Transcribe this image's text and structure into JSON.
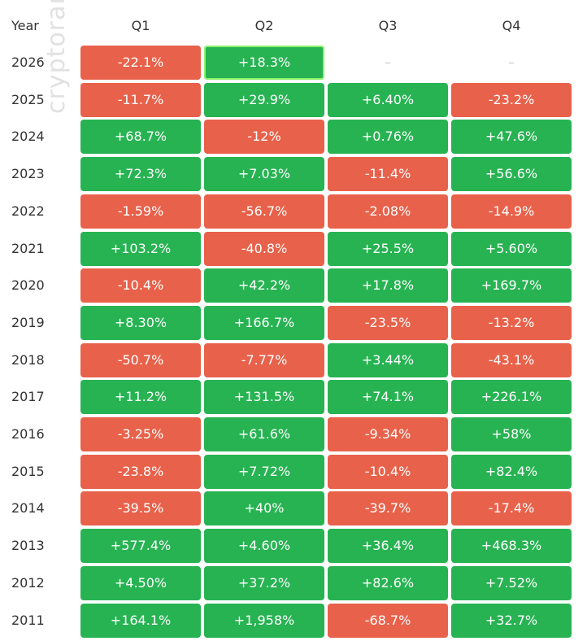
{
  "watermark_text": "cryptorank",
  "colors": {
    "positive": "#27b352",
    "negative": "#e8614a",
    "highlight_border": "#8ef26a",
    "empty_text": "#c8c8c8"
  },
  "chart_data": {
    "type": "heatmap",
    "row_header_label": "Year",
    "columns": [
      "Q1",
      "Q2",
      "Q3",
      "Q4"
    ],
    "rows": [
      {
        "year": "2026",
        "values": [
          "-22.1%",
          "+18.3%",
          "–",
          "–"
        ]
      },
      {
        "year": "2025",
        "values": [
          "-11.7%",
          "+29.9%",
          "+6.40%",
          "-23.2%"
        ]
      },
      {
        "year": "2024",
        "values": [
          "+68.7%",
          "-12%",
          "+0.76%",
          "+47.6%"
        ]
      },
      {
        "year": "2023",
        "values": [
          "+72.3%",
          "+7.03%",
          "-11.4%",
          "+56.6%"
        ]
      },
      {
        "year": "2022",
        "values": [
          "-1.59%",
          "-56.7%",
          "-2.08%",
          "-14.9%"
        ]
      },
      {
        "year": "2021",
        "values": [
          "+103.2%",
          "-40.8%",
          "+25.5%",
          "+5.60%"
        ]
      },
      {
        "year": "2020",
        "values": [
          "-10.4%",
          "+42.2%",
          "+17.8%",
          "+169.7%"
        ]
      },
      {
        "year": "2019",
        "values": [
          "+8.30%",
          "+166.7%",
          "-23.5%",
          "-13.2%"
        ]
      },
      {
        "year": "2018",
        "values": [
          "-50.7%",
          "-7.77%",
          "+3.44%",
          "-43.1%"
        ]
      },
      {
        "year": "2017",
        "values": [
          "+11.2%",
          "+131.5%",
          "+74.1%",
          "+226.1%"
        ]
      },
      {
        "year": "2016",
        "values": [
          "-3.25%",
          "+61.6%",
          "-9.34%",
          "+58%"
        ]
      },
      {
        "year": "2015",
        "values": [
          "-23.8%",
          "+7.72%",
          "-10.4%",
          "+82.4%"
        ]
      },
      {
        "year": "2014",
        "values": [
          "-39.5%",
          "+40%",
          "-39.7%",
          "-17.4%"
        ]
      },
      {
        "year": "2013",
        "values": [
          "+577.4%",
          "+4.60%",
          "+36.4%",
          "+468.3%"
        ]
      },
      {
        "year": "2012",
        "values": [
          "+4.50%",
          "+37.2%",
          "+82.6%",
          "+7.52%"
        ]
      },
      {
        "year": "2011",
        "values": [
          "+164.1%",
          "+1,958%",
          "-68.7%",
          "+32.7%"
        ]
      }
    ],
    "highlighted_cell": {
      "year": "2026",
      "column": "Q2"
    }
  }
}
